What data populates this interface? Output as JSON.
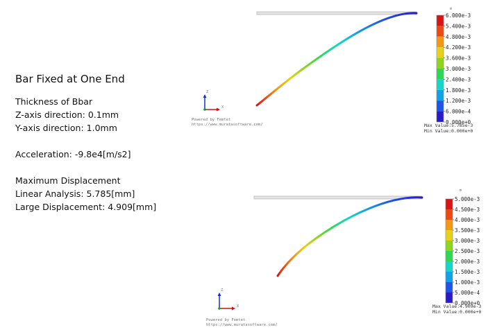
{
  "info": {
    "title": "Bar Fixed at One End",
    "thickness_heading": "Thickness of Bbar",
    "z_axis": "Z-axis direction: 0.1mm",
    "y_axis": "Y-axis direction: 1.0mm",
    "acceleration": "Acceleration: -9.8e4[m/s2]",
    "max_disp_heading": "Maximum Displacement",
    "linear": "Linear Analysis: 5.785[mm]",
    "large": "Large Displacement: 4.909[mm]"
  },
  "panels": [
    {
      "id": "linear",
      "unit": "m",
      "ticks": [
        "6.000e-3",
        "5.400e-3",
        "4.800e-3",
        "4.200e-3",
        "3.600e-3",
        "3.000e-3",
        "2.400e-3",
        "1.800e-3",
        "1.200e-3",
        "6.000e-4",
        "0.000e+0"
      ],
      "max_label": "Max Value:",
      "max_value": "5.785e-3",
      "min_label": "Min Value:",
      "min_value": "0.000e+0",
      "powered_by": "Powered by Femtet",
      "url": "https://www.muratasoftware.com/",
      "axis_labels": {
        "x": "X",
        "y": "Y",
        "z": "Z"
      }
    },
    {
      "id": "large",
      "unit": "m",
      "ticks": [
        "5.000e-3",
        "4.500e-3",
        "4.000e-3",
        "3.500e-3",
        "3.000e-3",
        "2.500e-3",
        "2.000e-3",
        "1.500e-3",
        "1.000e-3",
        "5.000e-4",
        "0.000e+0"
      ],
      "max_label": "Max Value:",
      "max_value": "4.909e-3",
      "min_label": "Min Value:",
      "min_value": "0.000e+0",
      "powered_by": "Powered by Femtet",
      "url": "https://www.muratasoftware.com/",
      "axis_labels": {
        "x": "X",
        "y": "Y",
        "z": "Z"
      }
    }
  ],
  "colors": {
    "rainbow": [
      "#2a1bc8",
      "#1f55e6",
      "#12a0e8",
      "#15d6c8",
      "#2ed855",
      "#8fd51f",
      "#e6d21a",
      "#f29a15",
      "#ec4a14",
      "#d81414"
    ],
    "undeformed_bar": "#c8c8c8",
    "axis_x": "#d01010",
    "axis_y": "#10a020",
    "axis_z": "#1030d0"
  }
}
